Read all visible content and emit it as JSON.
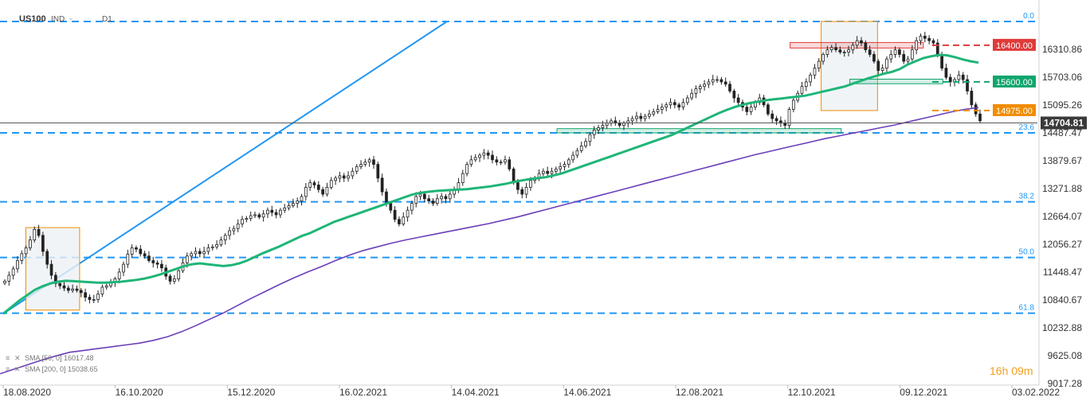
{
  "header": {
    "symbol": "US100",
    "source": "IND",
    "timeframe": "D1"
  },
  "timer": "16h 09m",
  "indicators": [
    {
      "label": "SMA [50, 0] 16017.48",
      "color": "#1fb578"
    },
    {
      "label": "SMA [200, 0] 15038.65",
      "color": "#6a3fb8"
    }
  ],
  "colors": {
    "sma50": "#1fb578",
    "sma200": "#6a3fb8",
    "fib": "#2196f3",
    "trend": "#2196f3",
    "resistance": "#e03a3a",
    "support_green": "#12a56d",
    "support_orange": "#f08c00",
    "bull": "#ffffff",
    "bear": "#222222"
  },
  "chart_data": {
    "type": "candlestick",
    "title": "US100",
    "timeframe": "D1",
    "x_labels": [
      "18.08.2020",
      "16.10.2020",
      "15.12.2020",
      "16.02.2021",
      "14.04.2021",
      "14.06.2021",
      "12.08.2021",
      "12.10.2021",
      "09.12.2021",
      "03.02.2022"
    ],
    "y_ticks": [
      "16310.86",
      "15703.06",
      "15095.26",
      "14487.47",
      "13879.67",
      "13271.88",
      "12664.07",
      "12056.27",
      "11448.47",
      "10840.67",
      "10232.88",
      "9625.08",
      "9017.28"
    ],
    "ylim": [
      9017.28,
      16918.66
    ],
    "current_price": "14704.81",
    "fibonacci": [
      {
        "label": "0.0",
        "value": 16918.66
      },
      {
        "label": "23.6",
        "value": 14487.47
      },
      {
        "label": "38.2",
        "value": 12983.0
      },
      {
        "label": "50.0",
        "value": 11767.0
      },
      {
        "label": "61.8",
        "value": 10551.0
      }
    ],
    "horizontal_levels": [
      {
        "label": "16400.00",
        "value": 16400.0,
        "color": "#e03a3a"
      },
      {
        "label": "15600.00",
        "value": 15600.0,
        "color": "#12a56d"
      },
      {
        "label": "14975.00",
        "value": 14975.0,
        "color": "#f08c00"
      }
    ],
    "zones": [
      {
        "name": "support-zone-2021",
        "x_start": 0.5355,
        "x_end": 0.8103,
        "y_low": 14487.47,
        "y_high": 14580.0
      },
      {
        "name": "support-zone-15600",
        "x_start": 0.8186,
        "x_end": 0.9085,
        "y_low": 15560.0,
        "y_high": 15660.0
      },
      {
        "name": "resistance-zone-16400",
        "x_start": 0.7609,
        "x_end": 0.8897,
        "y_low": 16340.0,
        "y_high": 16460.0
      }
    ],
    "boxes": [
      {
        "name": "pattern-box-2020",
        "x_start": 0.0219,
        "x_end": 0.0739,
        "y_low": 10620.0,
        "y_high": 12420.0
      },
      {
        "name": "pattern-box-2021",
        "x_start": 0.7909,
        "x_end": 0.8454,
        "y_low": 14975.0,
        "y_high": 16918.66
      }
    ],
    "trendline": {
      "x0": 0.0,
      "y0": 10540.0,
      "x1": 0.4291,
      "y1": 16918.66
    },
    "close": [
      11250,
      11380,
      11520,
      11700,
      11850,
      11980,
      12150,
      12380,
      12250,
      11900,
      11620,
      11380,
      11200,
      11150,
      11100,
      11050,
      11080,
      11050,
      11000,
      10900,
      10850,
      10850,
      10970,
      11120,
      11150,
      11230,
      11300,
      11450,
      11620,
      11840,
      11980,
      11950,
      11850,
      11800,
      11700,
      11650,
      11620,
      11540,
      11360,
      11250,
      11300,
      11480,
      11650,
      11800,
      11850,
      11900,
      11850,
      11900,
      11980,
      12000,
      12050,
      12150,
      12250,
      12350,
      12400,
      12500,
      12600,
      12620,
      12680,
      12700,
      12650,
      12720,
      12800,
      12750,
      12700,
      12800,
      12850,
      12900,
      12950,
      13000,
      13100,
      13300,
      13400,
      13350,
      13250,
      13150,
      13300,
      13450,
      13500,
      13550,
      13500,
      13550,
      13650,
      13750,
      13800,
      13850,
      13900,
      13800,
      13500,
      13200,
      12950,
      12800,
      12600,
      12500,
      12650,
      12800,
      12950,
      13100,
      13150,
      13050,
      13000,
      12950,
      13050,
      13100,
      13050,
      13150,
      13250,
      13400,
      13600,
      13800,
      13900,
      13950,
      14000,
      14050,
      14000,
      13900,
      13850,
      13850,
      13900,
      13700,
      13400,
      13250,
      13150,
      13300,
      13450,
      13500,
      13600,
      13650,
      13600,
      13650,
      13700,
      13750,
      13800,
      13900,
      14000,
      14100,
      14200,
      14300,
      14450,
      14550,
      14600,
      14650,
      14700,
      14750,
      14700,
      14650,
      14700,
      14750,
      14800,
      14850,
      14800,
      14850,
      14900,
      14950,
      15000,
      15050,
      15100,
      15150,
      15100,
      15050,
      15150,
      15250,
      15350,
      15450,
      15500,
      15550,
      15600,
      15650,
      15650,
      15600,
      15550,
      15400,
      15250,
      15150,
      15050,
      14950,
      15050,
      15150,
      15250,
      15100,
      14900,
      14800,
      14750,
      14700,
      14650,
      15000,
      15200,
      15350,
      15500,
      15600,
      15750,
      15900,
      16050,
      16200,
      16300,
      16350,
      16300,
      16250,
      16250,
      16300,
      16400,
      16500,
      16450,
      16300,
      16200,
      16050,
      15850,
      15900,
      16100,
      16200,
      16300,
      16200,
      16050,
      16100,
      16300,
      16500,
      16600,
      16550,
      16500,
      16450,
      16200,
      15900,
      15700,
      15600,
      15650,
      15750,
      15650,
      15400,
      15100,
      14900,
      14750
    ],
    "sma50": [
      10540,
      10680,
      10820,
      10940,
      11060,
      11140,
      11200,
      11240,
      11260,
      11250,
      11240,
      11230,
      11220,
      11220,
      11230,
      11240,
      11260,
      11280,
      11310,
      11350,
      11400,
      11460,
      11520,
      11580,
      11620,
      11640,
      11620,
      11600,
      11580,
      11600,
      11640,
      11700,
      11780,
      11860,
      11930,
      12000,
      12080,
      12160,
      12240,
      12300,
      12380,
      12460,
      12540,
      12600,
      12660,
      12720,
      12780,
      12840,
      12900,
      12960,
      13020,
      13080,
      13140,
      13180,
      13200,
      13220,
      13230,
      13240,
      13250,
      13260,
      13280,
      13300,
      13320,
      13350,
      13380,
      13420,
      13450,
      13480,
      13500,
      13520,
      13560,
      13600,
      13660,
      13720,
      13780,
      13840,
      13900,
      13960,
      14020,
      14080,
      14140,
      14200,
      14260,
      14320,
      14380,
      14440,
      14520,
      14600,
      14680,
      14760,
      14840,
      14920,
      14990,
      15050,
      15100,
      15140,
      15170,
      15200,
      15220,
      15240,
      15260,
      15280,
      15300,
      15340,
      15380,
      15420,
      15460,
      15500,
      15560,
      15620,
      15680,
      15730,
      15780,
      15820,
      15880,
      15980,
      16050,
      16120,
      16160,
      16190,
      16180,
      16140,
      16090,
      16050,
      16020
    ],
    "sma200": [
      9230,
      9330,
      9430,
      9530,
      9620,
      9700,
      9740,
      9780,
      9820,
      9860,
      9900,
      9960,
      10040,
      10150,
      10280,
      10420,
      10560,
      10720,
      10880,
      11030,
      11180,
      11320,
      11450,
      11570,
      11700,
      11820,
      11920,
      12000,
      12080,
      12150,
      12210,
      12270,
      12330,
      12390,
      12450,
      12510,
      12580,
      12650,
      12730,
      12810,
      12890,
      12970,
      13050,
      13130,
      13210,
      13290,
      13370,
      13450,
      13530,
      13610,
      13690,
      13770,
      13850,
      13930,
      14010,
      14080,
      14150,
      14220,
      14290,
      14360,
      14420,
      14480,
      14540,
      14600,
      14660,
      14730,
      14800,
      14870,
      14940,
      15000,
      15039
    ]
  }
}
